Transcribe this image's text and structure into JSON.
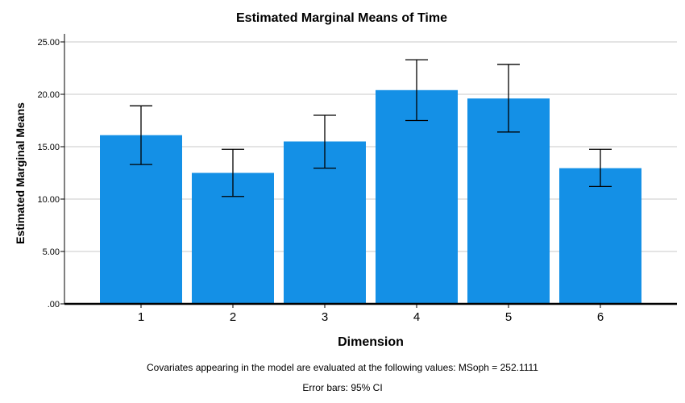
{
  "chart_data": {
    "type": "bar",
    "title": "Estimated Marginal Means of Time",
    "xlabel": "Dimension",
    "ylabel": "Estimated Marginal Means",
    "categories": [
      "1",
      "2",
      "3",
      "4",
      "5",
      "6"
    ],
    "values": [
      16.1,
      12.5,
      15.5,
      20.4,
      19.6,
      12.95
    ],
    "error_low": [
      13.3,
      10.25,
      12.95,
      17.5,
      16.4,
      11.2
    ],
    "error_high": [
      18.9,
      14.75,
      18.0,
      23.3,
      22.85,
      14.75
    ],
    "ylim": [
      0,
      25
    ],
    "yticks": [
      ".00",
      "5.00",
      "10.00",
      "15.00",
      "20.00",
      "25.00"
    ],
    "ytick_values": [
      0,
      5,
      10,
      15,
      20,
      25
    ],
    "grid": true,
    "bar_color": "#1490e6"
  },
  "footnotes": {
    "covariates": "Covariates appearing in the model are evaluated at the following values: MSoph = 252.1111",
    "error_bars": "Error bars: 95% CI"
  }
}
